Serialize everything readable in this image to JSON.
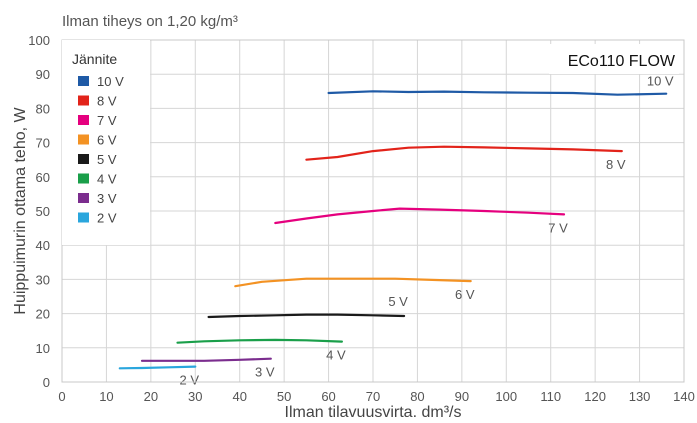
{
  "chart_data": {
    "type": "line",
    "title": "ECo110 FLOW",
    "subtitle": "Ilman tiheys on 1,20 kg/m³",
    "xlabel": "Ilman tilavuusvirta. dm³/s",
    "ylabel": "Huippuimurin ottama teho, W",
    "xlim": [
      0,
      140
    ],
    "ylim": [
      0,
      100
    ],
    "x_ticks": [
      "0",
      "10",
      "20",
      "30",
      "40",
      "50",
      "60",
      "70",
      "80",
      "90",
      "100",
      "110",
      "120",
      "130",
      "140"
    ],
    "y_ticks": [
      "0",
      "10",
      "20",
      "30",
      "40",
      "50",
      "60",
      "70",
      "80",
      "90",
      "100"
    ],
    "grid": true,
    "legend_title": "Jännite",
    "legend_position": "top-left",
    "series": [
      {
        "name": "10 V",
        "label": "10 V",
        "color": "#1f5aa6",
        "x": [
          60,
          70,
          78,
          86,
          95,
          105,
          115,
          125,
          136
        ],
        "y": [
          84.5,
          85.0,
          84.8,
          84.9,
          84.7,
          84.6,
          84.5,
          84.0,
          84.3
        ]
      },
      {
        "name": "8 V",
        "label": "8 V",
        "color": "#e2231a",
        "x": [
          55,
          62,
          70,
          78,
          86,
          95,
          105,
          115,
          126
        ],
        "y": [
          65.0,
          65.8,
          67.5,
          68.5,
          68.8,
          68.6,
          68.3,
          68.0,
          67.5
        ]
      },
      {
        "name": "7 V",
        "label": "7 V",
        "color": "#e5007e",
        "x": [
          48,
          55,
          62,
          70,
          76,
          85,
          95,
          105,
          113
        ],
        "y": [
          46.5,
          47.8,
          49.0,
          50.0,
          50.7,
          50.4,
          50.0,
          49.5,
          49.0
        ]
      },
      {
        "name": "6 V",
        "label": "6 V",
        "color": "#f39223",
        "x": [
          39,
          45,
          55,
          65,
          75,
          85,
          92
        ],
        "y": [
          28.0,
          29.3,
          30.2,
          30.2,
          30.2,
          29.8,
          29.5
        ]
      },
      {
        "name": "5 V",
        "label": "5 V",
        "color": "#1a1a1a",
        "x": [
          33,
          40,
          48,
          55,
          62,
          70,
          77
        ],
        "y": [
          19.0,
          19.3,
          19.5,
          19.7,
          19.7,
          19.5,
          19.3
        ]
      },
      {
        "name": "4 V",
        "label": "4 V",
        "color": "#1a9f4a",
        "x": [
          26,
          32,
          40,
          48,
          55,
          63
        ],
        "y": [
          11.5,
          11.9,
          12.2,
          12.3,
          12.2,
          11.8
        ]
      },
      {
        "name": "3 V",
        "label": "3 V",
        "color": "#7b2d8e",
        "x": [
          18,
          25,
          32,
          40,
          47
        ],
        "y": [
          6.2,
          6.2,
          6.2,
          6.5,
          6.8
        ]
      },
      {
        "name": "2 V",
        "label": "2 V",
        "color": "#2aa6dd",
        "x": [
          13,
          18,
          24,
          30
        ],
        "y": [
          4.0,
          4.1,
          4.3,
          4.5
        ]
      }
    ]
  }
}
